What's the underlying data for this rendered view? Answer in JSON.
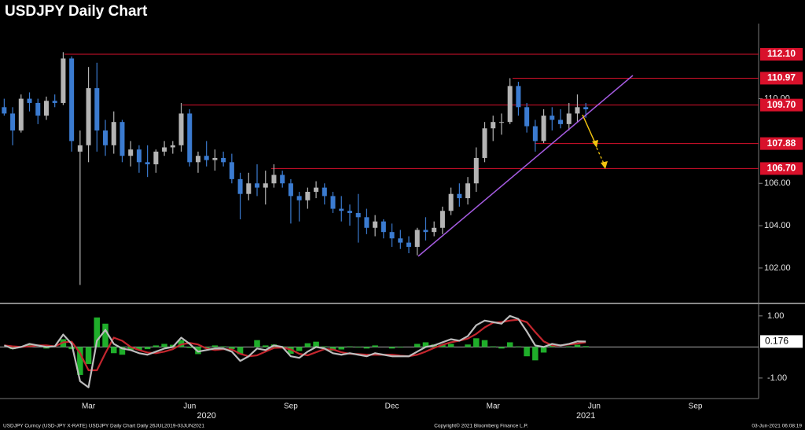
{
  "chart_data": {
    "type": "candlestick",
    "title": "USDJPY Daily Chart",
    "footer_left": "USDJPY Curncy (USD-JPY X-RATE) USDJPY Daily Chart  Daily 26JUL2019-03JUN2021",
    "footer_center": "Copyright© 2021 Bloomberg Finance L.P.",
    "footer_right": "03-Jun-2021 06:08:19",
    "categories": [
      null,
      null,
      null,
      null,
      null,
      null,
      null,
      null,
      null,
      null,
      "Mar",
      null,
      null,
      null,
      null,
      null,
      null,
      null,
      null,
      null,
      null,
      null,
      "Jun",
      null,
      null,
      null,
      null,
      null,
      null,
      null,
      null,
      null,
      null,
      null,
      "Sep",
      null,
      null,
      null,
      null,
      null,
      null,
      null,
      null,
      null,
      null,
      null,
      "Dec",
      null,
      null,
      null,
      null,
      null,
      null,
      null,
      null,
      null,
      null,
      null,
      "Mar",
      null,
      null,
      null,
      null,
      null,
      null,
      null,
      null,
      null,
      null,
      null,
      "Jun",
      null,
      null,
      null,
      null,
      null,
      null,
      null,
      null,
      null,
      null,
      null,
      "Sep",
      null,
      null,
      null,
      null,
      null,
      null,
      null
    ],
    "year_labels": [
      null,
      null,
      null,
      null,
      null,
      null,
      null,
      null,
      null,
      null,
      null,
      null,
      null,
      null,
      null,
      null,
      null,
      null,
      null,
      null,
      null,
      null,
      null,
      null,
      "2020",
      null,
      null,
      null,
      null,
      null,
      null,
      null,
      null,
      null,
      null,
      null,
      null,
      null,
      null,
      null,
      null,
      null,
      null,
      null,
      null,
      null,
      null,
      null,
      null,
      null,
      null,
      null,
      null,
      null,
      null,
      null,
      null,
      null,
      null,
      null,
      null,
      null,
      null,
      null,
      null,
      null,
      null,
      null,
      null,
      "2021",
      null,
      null,
      null,
      null,
      null,
      null,
      null,
      null,
      null,
      null,
      null,
      null,
      null,
      null,
      null,
      null,
      null,
      null,
      null,
      null
    ],
    "up_color": "#b4b4b4",
    "down_color": "#3b7bd0",
    "open": [
      109.6,
      109.3,
      108.5,
      110.0,
      109.8,
      109.2,
      109.9,
      109.8,
      111.9,
      107.5,
      107.8,
      110.5,
      108.5,
      107.8,
      108.9,
      107.3,
      107.6,
      107.0,
      106.9,
      107.5,
      107.7,
      107.8,
      109.3,
      107.0,
      107.3,
      107.1,
      107.2,
      107.0,
      106.2,
      105.5,
      106.0,
      105.8,
      106.0,
      106.4,
      106.0,
      105.4,
      105.2,
      105.6,
      105.8,
      105.4,
      104.8,
      104.7,
      104.6,
      104.4,
      103.9,
      104.2,
      103.7,
      103.4,
      103.2,
      103.0,
      103.8,
      103.7,
      103.9,
      104.7,
      105.5,
      105.3,
      106.0,
      107.2,
      108.6,
      108.9,
      108.9,
      110.6,
      109.6,
      108.7,
      108.0,
      109.2,
      109.0,
      108.8,
      109.3,
      109.6,
      null,
      null,
      null,
      null,
      null,
      null,
      null,
      null,
      null,
      null,
      null,
      null,
      null,
      null,
      null,
      null,
      null,
      null,
      null,
      null
    ],
    "high": [
      110.0,
      109.6,
      110.2,
      110.3,
      110.0,
      110.1,
      110.2,
      112.2,
      112.0,
      108.5,
      111.5,
      111.7,
      109.0,
      109.4,
      109.0,
      108.0,
      107.8,
      107.8,
      107.6,
      108.0,
      108.0,
      109.8,
      109.5,
      107.5,
      108.0,
      107.6,
      107.5,
      107.4,
      106.5,
      106.5,
      106.9,
      106.6,
      106.9,
      106.6,
      106.2,
      105.6,
      105.8,
      106.1,
      106.0,
      105.6,
      105.4,
      105.0,
      105.5,
      104.8,
      104.5,
      104.3,
      104.1,
      103.8,
      103.5,
      103.9,
      104.4,
      104.2,
      104.9,
      105.8,
      106.0,
      106.3,
      107.7,
      108.9,
      109.2,
      109.3,
      110.97,
      110.8,
      109.8,
      109.0,
      109.5,
      109.6,
      109.5,
      109.8,
      110.2,
      109.8,
      null,
      null,
      null,
      null,
      null,
      null,
      null,
      null,
      null,
      null,
      null,
      null,
      null,
      null,
      null,
      null,
      null,
      null,
      null,
      null
    ],
    "low": [
      109.2,
      107.8,
      108.4,
      109.4,
      108.8,
      109.0,
      109.6,
      109.7,
      107.5,
      101.2,
      107.0,
      107.5,
      107.3,
      107.4,
      107.0,
      106.8,
      106.5,
      106.3,
      106.5,
      107.3,
      107.4,
      107.5,
      106.8,
      106.5,
      106.8,
      106.6,
      106.8,
      106.0,
      104.3,
      105.2,
      105.4,
      105.0,
      105.8,
      105.8,
      104.1,
      104.2,
      104.8,
      105.3,
      105.0,
      104.6,
      104.2,
      104.0,
      103.2,
      103.6,
      103.5,
      103.4,
      103.0,
      102.9,
      102.7,
      102.6,
      103.3,
      103.5,
      103.6,
      104.5,
      104.9,
      105.0,
      105.6,
      107.0,
      108.0,
      108.3,
      108.8,
      109.2,
      108.4,
      107.5,
      107.9,
      108.5,
      108.6,
      108.5,
      108.9,
      109.1,
      null,
      null,
      null,
      null,
      null,
      null,
      null,
      null,
      null,
      null,
      null,
      null,
      null,
      null,
      null,
      null,
      null,
      null,
      null,
      null
    ],
    "close": [
      109.3,
      108.5,
      110.0,
      109.8,
      109.2,
      109.9,
      109.8,
      111.9,
      108.0,
      107.8,
      110.5,
      108.5,
      107.8,
      108.9,
      107.3,
      107.6,
      107.0,
      106.9,
      107.5,
      107.7,
      107.8,
      109.3,
      107.0,
      107.3,
      107.1,
      107.2,
      107.0,
      106.2,
      105.5,
      106.0,
      105.8,
      106.0,
      106.4,
      106.0,
      105.4,
      105.2,
      105.6,
      105.8,
      105.4,
      104.8,
      104.7,
      104.6,
      104.4,
      103.9,
      104.2,
      103.7,
      103.4,
      103.2,
      103.0,
      103.8,
      103.7,
      103.9,
      104.7,
      105.5,
      105.3,
      106.0,
      107.2,
      108.6,
      108.9,
      108.9,
      110.6,
      109.6,
      108.7,
      108.0,
      109.2,
      109.0,
      108.8,
      109.3,
      109.6,
      109.5,
      null,
      null,
      null,
      null,
      null,
      null,
      null,
      null,
      null,
      null,
      null,
      null,
      null,
      null,
      null,
      null,
      null,
      null,
      null,
      null
    ],
    "ylim": [
      100.4,
      113.55
    ],
    "yticks": [
      {
        "value": 102,
        "label": "102.00"
      },
      {
        "value": 104,
        "label": "104.00"
      },
      {
        "value": 106,
        "label": "106.00"
      },
      {
        "value": 110,
        "label": "110.00"
      }
    ],
    "level_color": "#d8112b",
    "levels": [
      {
        "value": 112.1,
        "label": "112.10"
      },
      {
        "value": 110.97,
        "label": "110.97"
      },
      {
        "value": 109.7,
        "label": "109.70"
      },
      {
        "value": 107.88,
        "label": "107.88"
      },
      {
        "value": 106.7,
        "label": "106.70"
      }
    ],
    "indicator": {
      "ylim": [
        -1.61,
        1.3
      ],
      "yticks": [
        {
          "value": 1,
          "label": "1.00"
        },
        {
          "value": -1,
          "label": "-1.00"
        }
      ],
      "series": [
        {
          "kind": "bar",
          "color": "#1fae2a",
          "values": [
            0,
            -0.07,
            0,
            0.08,
            0,
            -0.05,
            0,
            0.25,
            -0.07,
            -0.9,
            -0.55,
            0.95,
            0.75,
            -0.2,
            -0.25,
            -0.1,
            -0.1,
            -0.07,
            0.05,
            0.1,
            0.07,
            0.22,
            -0.03,
            -0.23,
            -0.05,
            0.05,
            0.02,
            -0.07,
            -0.23,
            0,
            0.22,
            0.05,
            0.08,
            0.02,
            -0.22,
            -0.13,
            0.12,
            0.17,
            0.02,
            -0.12,
            -0.08,
            0.02,
            -0.02,
            -0.05,
            0.05,
            0,
            -0.05,
            -0.02,
            0,
            0.1,
            0.15,
            0.08,
            0.08,
            0.1,
            0,
            0.08,
            0.28,
            0.22,
            0.02,
            -0.05,
            0.15,
            0.02,
            -0.3,
            -0.43,
            -0.18,
            0.05,
            0,
            0.02,
            0.07,
            0.026,
            null,
            null,
            null,
            null,
            null,
            null,
            null,
            null,
            null,
            null,
            null,
            null,
            null,
            null,
            null,
            null,
            null,
            null,
            null,
            null
          ]
        },
        {
          "kind": "line",
          "color": "#c4262e",
          "values": [
            0.05,
            0.02,
            0,
            0.02,
            0.05,
            0.05,
            0.02,
            0.15,
            0.17,
            -0.2,
            -0.75,
            -0.75,
            -0.2,
            0.3,
            0.2,
            0,
            -0.1,
            -0.18,
            -0.2,
            -0.15,
            -0.07,
            0.08,
            0.13,
            0.08,
            -0.05,
            -0.1,
            -0.07,
            -0.08,
            -0.22,
            -0.3,
            -0.27,
            -0.15,
            -0.03,
            -0.02,
            -0.08,
            -0.22,
            -0.27,
            -0.17,
            -0.07,
            -0.08,
            -0.17,
            -0.22,
            -0.23,
            -0.25,
            -0.25,
            -0.25,
            -0.25,
            -0.28,
            -0.3,
            -0.25,
            -0.15,
            -0.03,
            0.07,
            0.15,
            0.2,
            0.27,
            0.42,
            0.63,
            0.78,
            0.8,
            0.85,
            0.88,
            0.8,
            0.48,
            0.18,
            0.05,
            0.05,
            0.08,
            0.11,
            0.15,
            null,
            null,
            null,
            null,
            null,
            null,
            null,
            null,
            null,
            null,
            null,
            null,
            null,
            null,
            null,
            null,
            null,
            null,
            null,
            null
          ]
        },
        {
          "kind": "line",
          "color": "#bdbdbd",
          "values": [
            0.05,
            -0.05,
            0,
            0.1,
            0.05,
            0,
            0.02,
            0.4,
            0.1,
            -1.1,
            -1.3,
            0.2,
            0.55,
            0.1,
            -0.05,
            -0.1,
            -0.2,
            -0.25,
            -0.15,
            -0.05,
            0,
            0.3,
            0.1,
            -0.15,
            -0.1,
            -0.05,
            -0.05,
            -0.15,
            -0.45,
            -0.3,
            -0.05,
            -0.1,
            0.05,
            0,
            -0.3,
            -0.35,
            -0.15,
            0,
            -0.05,
            -0.2,
            -0.25,
            -0.2,
            -0.25,
            -0.3,
            -0.2,
            -0.25,
            -0.3,
            -0.3,
            -0.3,
            -0.15,
            0,
            0.05,
            0.15,
            0.25,
            0.2,
            0.35,
            0.7,
            0.85,
            0.8,
            0.75,
            1.0,
            0.9,
            0.5,
            0.05,
            0,
            0.1,
            0.05,
            0.1,
            0.18,
            0.176,
            null,
            null,
            null,
            null,
            null,
            null,
            null,
            null,
            null,
            null,
            null,
            null,
            null,
            null,
            null,
            null,
            null,
            null,
            null,
            null
          ]
        }
      ]
    }
  }
}
